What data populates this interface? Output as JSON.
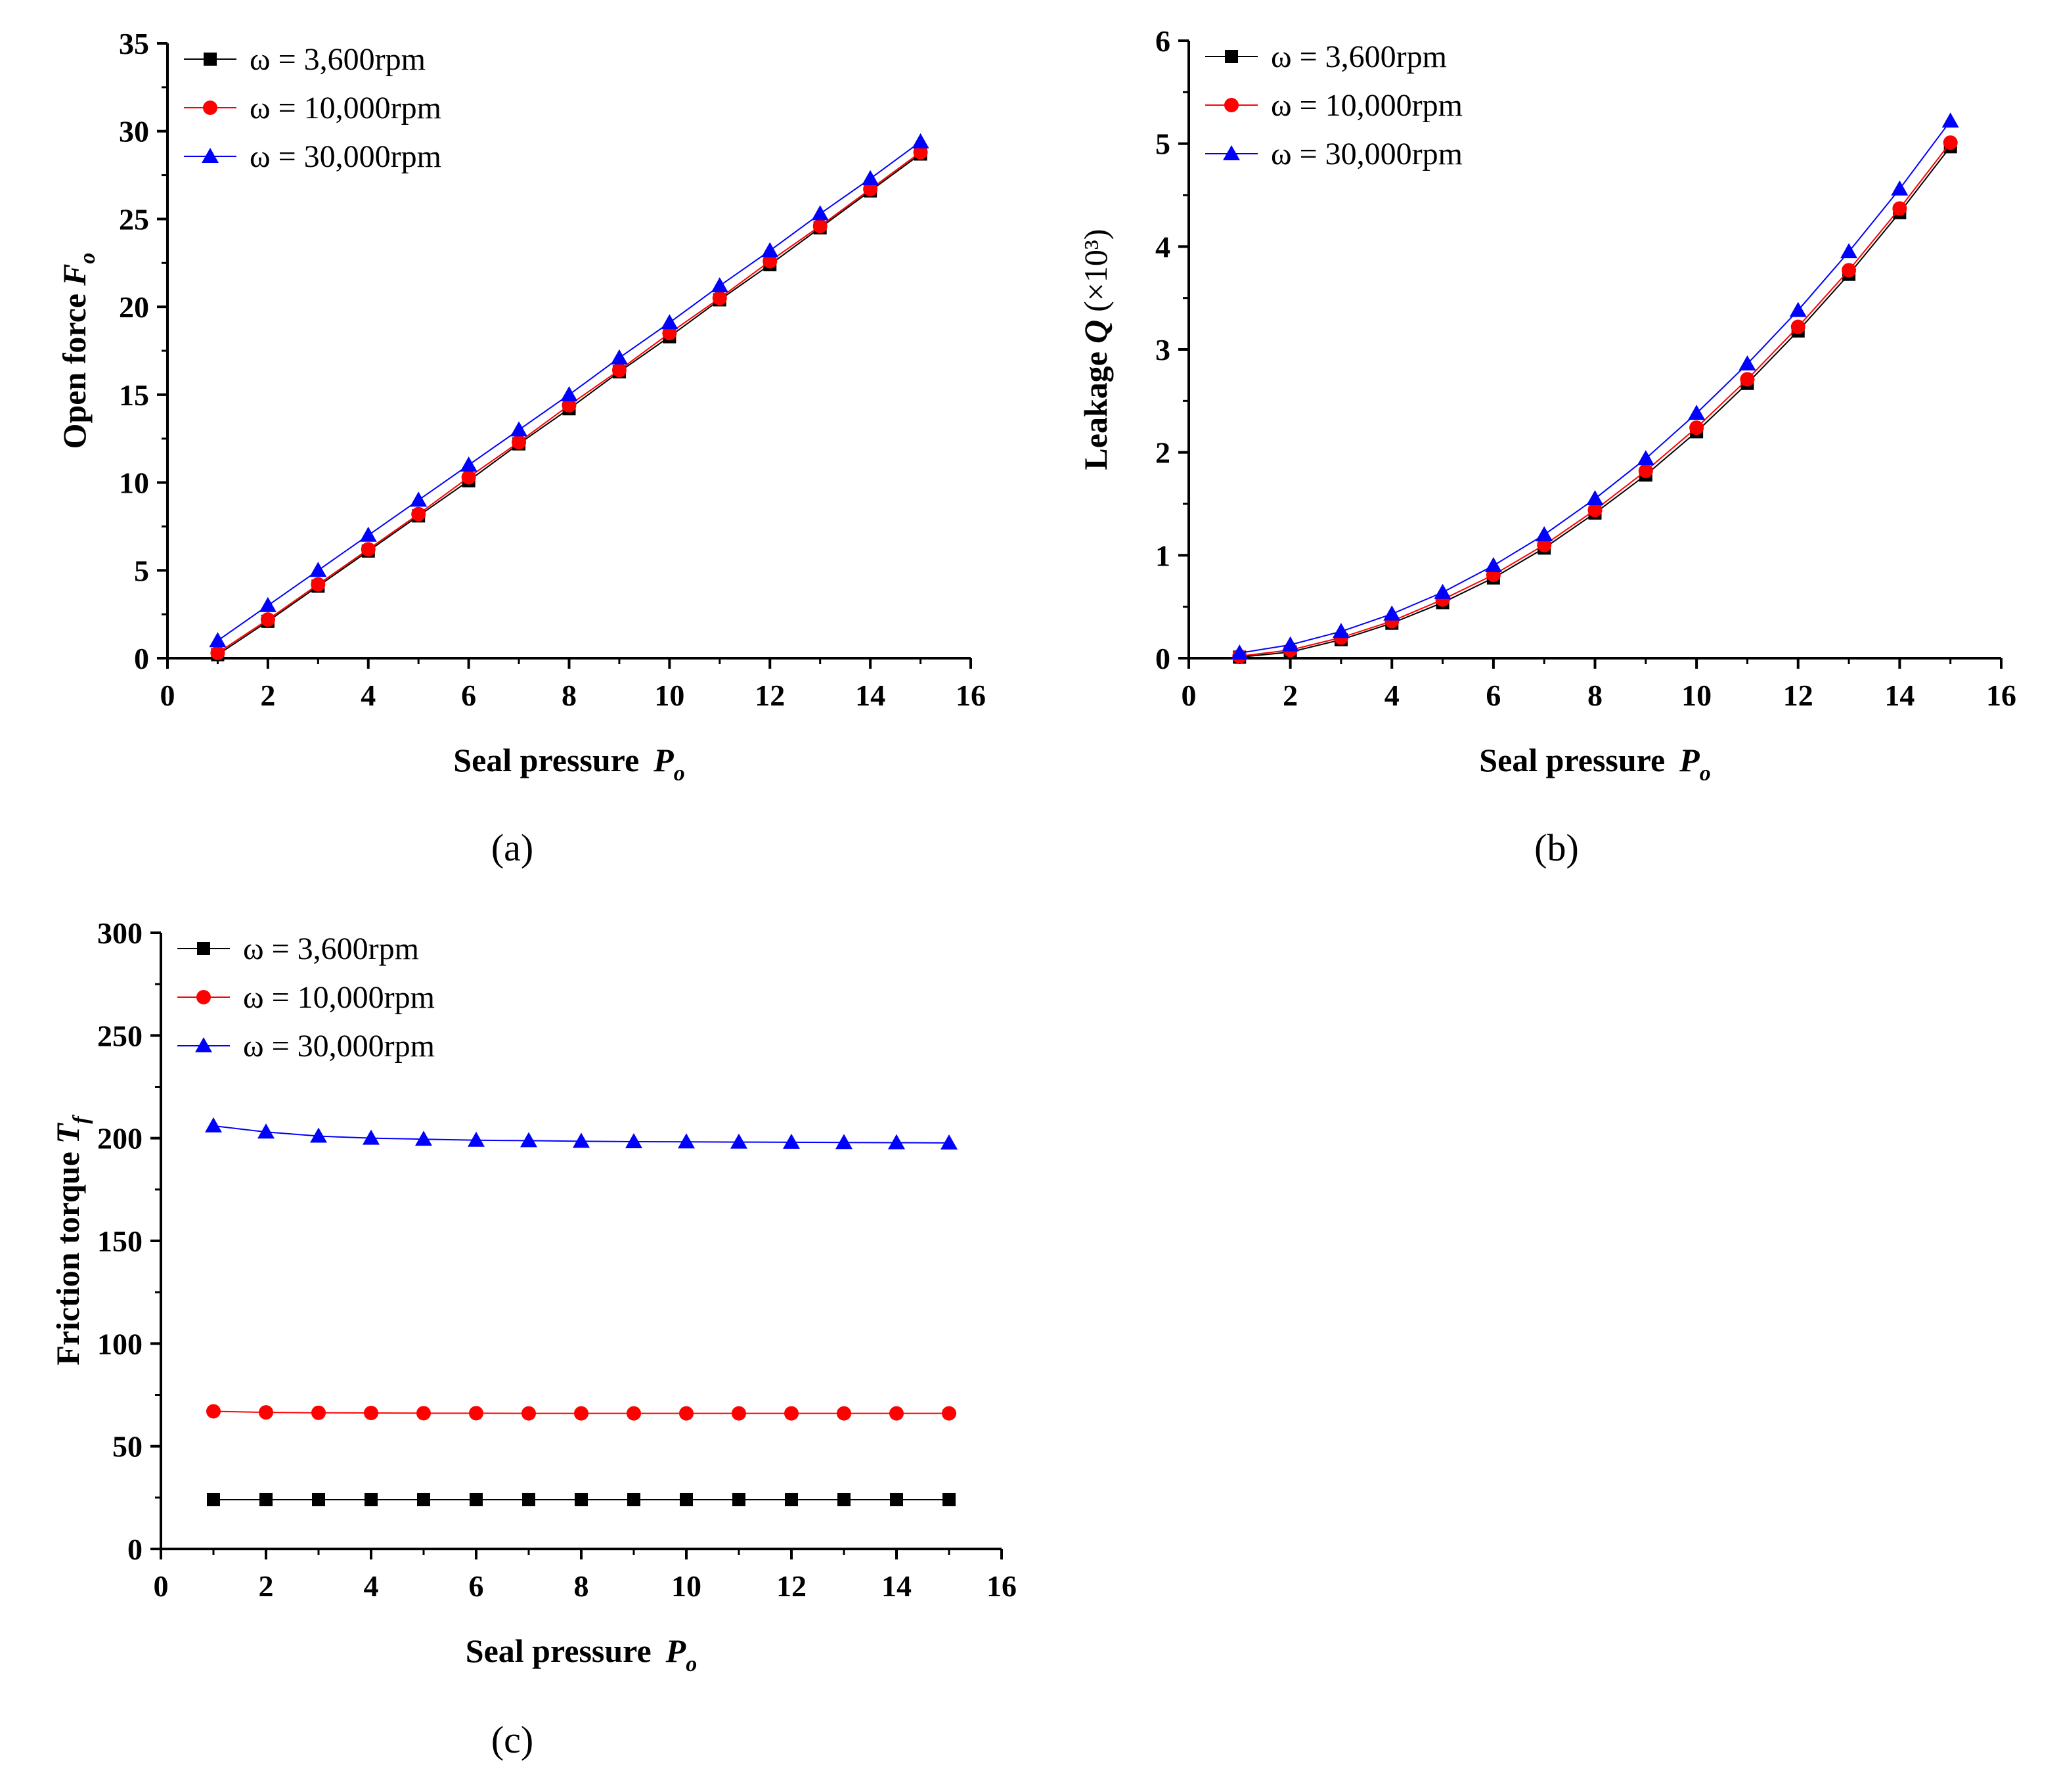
{
  "figure": {
    "panels": [
      "(a)",
      "(b)",
      "(c)"
    ]
  },
  "chart_data": [
    {
      "id": "a",
      "type": "line",
      "panel_label": "(a)",
      "xlabel": "Seal pressure",
      "xlabel_symbol": "P",
      "xlabel_sub": "o",
      "ylabel": "Open force",
      "ylabel_symbol": "F",
      "ylabel_sub": "o",
      "ylabel_suffix": "",
      "xlim": [
        0,
        16
      ],
      "ylim": [
        0,
        35
      ],
      "xticks": [
        0,
        2,
        4,
        6,
        8,
        10,
        12,
        14,
        16
      ],
      "yticks": [
        0,
        5,
        10,
        15,
        20,
        25,
        30,
        35
      ],
      "x": [
        1,
        2,
        3,
        4,
        5,
        6,
        7,
        8,
        9,
        10,
        11,
        12,
        13,
        14,
        15
      ],
      "legend_position": "top-left",
      "series": [
        {
          "name": "ω = 3,600rpm",
          "color": "#000000",
          "marker": "square",
          "values": [
            0.2,
            2.1,
            4.1,
            6.1,
            8.1,
            10.1,
            12.2,
            14.2,
            16.3,
            18.3,
            20.4,
            22.4,
            24.5,
            26.6,
            28.7
          ]
        },
        {
          "name": "ω = 10,000rpm",
          "color": "#ff0000",
          "marker": "circle",
          "values": [
            0.3,
            2.2,
            4.2,
            6.2,
            8.2,
            10.3,
            12.3,
            14.4,
            16.4,
            18.5,
            20.5,
            22.6,
            24.6,
            26.7,
            28.8
          ]
        },
        {
          "name": "ω = 30,000rpm",
          "color": "#0000ff",
          "marker": "triangle",
          "values": [
            1.0,
            3.0,
            5.0,
            7.0,
            9.0,
            11.0,
            13.0,
            15.0,
            17.1,
            19.1,
            21.2,
            23.2,
            25.3,
            27.3,
            29.4
          ]
        }
      ]
    },
    {
      "id": "b",
      "type": "line",
      "panel_label": "(b)",
      "xlabel": "Seal pressure",
      "xlabel_symbol": "P",
      "xlabel_sub": "o",
      "ylabel": "Leakage",
      "ylabel_symbol": "Q",
      "ylabel_sub": "",
      "ylabel_suffix": "(×10³)",
      "xlim": [
        0,
        16
      ],
      "ylim": [
        0,
        6
      ],
      "xticks": [
        0,
        2,
        4,
        6,
        8,
        10,
        12,
        14,
        16
      ],
      "yticks": [
        0,
        1,
        2,
        3,
        4,
        5,
        6
      ],
      "x": [
        1,
        2,
        3,
        4,
        5,
        6,
        7,
        8,
        9,
        10,
        11,
        12,
        13,
        14,
        15
      ],
      "legend_position": "top-left",
      "series": [
        {
          "name": "ω = 3,600rpm",
          "color": "#000000",
          "marker": "square",
          "values": [
            0.01,
            0.06,
            0.18,
            0.34,
            0.54,
            0.78,
            1.07,
            1.41,
            1.78,
            2.2,
            2.67,
            3.18,
            3.73,
            4.33,
            4.97
          ]
        },
        {
          "name": "ω = 10,000rpm",
          "color": "#ff0000",
          "marker": "circle",
          "values": [
            0.02,
            0.08,
            0.2,
            0.36,
            0.57,
            0.81,
            1.1,
            1.44,
            1.82,
            2.24,
            2.71,
            3.22,
            3.77,
            4.37,
            5.01
          ]
        },
        {
          "name": "ω = 30,000rpm",
          "color": "#0000ff",
          "marker": "triangle",
          "values": [
            0.05,
            0.13,
            0.26,
            0.43,
            0.64,
            0.9,
            1.2,
            1.55,
            1.94,
            2.38,
            2.86,
            3.38,
            3.95,
            4.56,
            5.22
          ]
        }
      ]
    },
    {
      "id": "c",
      "type": "line",
      "panel_label": "(c)",
      "xlabel": "Seal pressure",
      "xlabel_symbol": "P",
      "xlabel_sub": "o",
      "ylabel": "Friction torque",
      "ylabel_symbol": "T",
      "ylabel_sub": "f",
      "ylabel_suffix": "",
      "xlim": [
        0,
        16
      ],
      "ylim": [
        0,
        300
      ],
      "xticks": [
        0,
        2,
        4,
        6,
        8,
        10,
        12,
        14,
        16
      ],
      "yticks": [
        0,
        50,
        100,
        150,
        200,
        250,
        300
      ],
      "x": [
        1,
        2,
        3,
        4,
        5,
        6,
        7,
        8,
        9,
        10,
        11,
        12,
        13,
        14,
        15
      ],
      "legend_position": "top-left",
      "series": [
        {
          "name": "ω = 3,600rpm",
          "color": "#000000",
          "marker": "square",
          "values": [
            24,
            24,
            24,
            24,
            24,
            24,
            24,
            24,
            24,
            24,
            24,
            24,
            24,
            24,
            24
          ]
        },
        {
          "name": "ω = 10,000rpm",
          "color": "#ff0000",
          "marker": "circle",
          "values": [
            67,
            66.5,
            66.3,
            66.2,
            66.1,
            66.1,
            66.0,
            66.0,
            66.0,
            66.0,
            66.0,
            66.0,
            66.0,
            66.0,
            66.0
          ]
        },
        {
          "name": "ω = 30,000rpm",
          "color": "#0000ff",
          "marker": "triangle",
          "values": [
            206,
            203,
            201,
            200,
            199.5,
            199,
            198.8,
            198.5,
            198.3,
            198.2,
            198.1,
            198,
            197.9,
            197.8,
            197.7
          ]
        }
      ]
    }
  ]
}
